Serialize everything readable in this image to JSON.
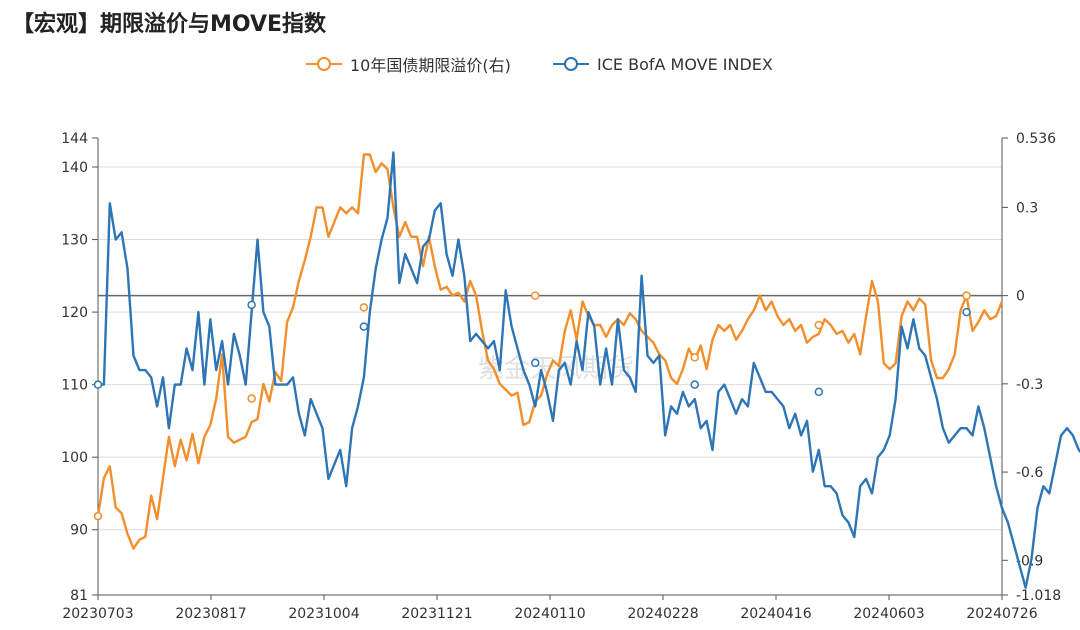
{
  "title": "【宏观】期限溢价与MOVE指数",
  "watermark": "紫金天风期货",
  "legend": [
    {
      "label": "10年国债期限溢价(右)",
      "color": "#F28E2B"
    },
    {
      "label": "ICE BofA MOVE INDEX",
      "color": "#2E75B6"
    }
  ],
  "chart_data": {
    "type": "line",
    "x_ticks": [
      "20230703",
      "20230817",
      "20231004",
      "20231121",
      "20240110",
      "20240228",
      "20240416",
      "20240603",
      "20240726"
    ],
    "left_axis": {
      "ticks": [
        81,
        90,
        100,
        110,
        120,
        130,
        140,
        144
      ],
      "range": [
        81,
        144
      ]
    },
    "right_axis": {
      "ticks": [
        -1.018,
        -0.9,
        -0.6,
        -0.3,
        0,
        0.3,
        0.536
      ],
      "range": [
        -1.018,
        0.536
      ]
    },
    "grid": true,
    "series": [
      {
        "name": "10年国债期限溢价(右)",
        "axis": "right",
        "color": "#F28E2B",
        "values": [
          -0.75,
          -0.62,
          -0.58,
          -0.72,
          -0.74,
          -0.81,
          -0.86,
          -0.83,
          -0.82,
          -0.68,
          -0.76,
          -0.62,
          -0.48,
          -0.58,
          -0.49,
          -0.56,
          -0.47,
          -0.57,
          -0.48,
          -0.44,
          -0.35,
          -0.2,
          -0.48,
          -0.5,
          -0.49,
          -0.48,
          -0.43,
          -0.42,
          -0.3,
          -0.36,
          -0.26,
          -0.29,
          -0.09,
          -0.04,
          0.05,
          0.12,
          0.2,
          0.3,
          0.3,
          0.2,
          0.25,
          0.3,
          0.28,
          0.3,
          0.28,
          0.48,
          0.48,
          0.42,
          0.45,
          0.43,
          0.3,
          0.2,
          0.25,
          0.2,
          0.2,
          0.1,
          0.2,
          0.1,
          0.02,
          0.03,
          0.0,
          0.01,
          -0.02,
          0.05,
          0.0,
          -0.12,
          -0.22,
          -0.25,
          -0.3,
          -0.32,
          -0.34,
          -0.33,
          -0.44,
          -0.43,
          -0.36,
          -0.34,
          -0.27,
          -0.22,
          -0.24,
          -0.12,
          -0.05,
          -0.15,
          -0.02,
          -0.07,
          -0.1,
          -0.1,
          -0.14,
          -0.1,
          -0.08,
          -0.1,
          -0.06,
          -0.08,
          -0.12,
          -0.14,
          -0.16,
          -0.2,
          -0.22,
          -0.28,
          -0.3,
          -0.25,
          -0.18,
          -0.22,
          -0.17,
          -0.25,
          -0.15,
          -0.1,
          -0.12,
          -0.1,
          -0.15,
          -0.12,
          -0.08,
          -0.05,
          0.0,
          -0.05,
          -0.02,
          -0.07,
          -0.1,
          -0.08,
          -0.12,
          -0.1,
          -0.16,
          -0.14,
          -0.13,
          -0.08,
          -0.1,
          -0.13,
          -0.12,
          -0.16,
          -0.13,
          -0.2,
          -0.07,
          0.05,
          -0.02,
          -0.23,
          -0.25,
          -0.23,
          -0.07,
          -0.02,
          -0.05,
          -0.01,
          -0.03,
          -0.22,
          -0.28,
          -0.28,
          -0.25,
          -0.2,
          -0.05,
          0.0,
          -0.12,
          -0.09,
          -0.05,
          -0.08,
          -0.07,
          -0.02
        ]
      },
      {
        "name": "ICE BofA MOVE INDEX",
        "axis": "left",
        "color": "#2E75B6",
        "values": [
          110,
          110,
          135,
          130,
          131,
          126,
          114,
          112,
          112,
          111,
          107,
          111,
          104,
          110,
          110,
          115,
          112,
          120,
          110,
          119,
          112,
          116,
          110,
          117,
          114,
          110,
          120,
          130,
          120,
          118,
          110,
          110,
          110,
          111,
          106,
          103,
          108,
          106,
          104,
          97,
          99,
          101,
          96,
          104,
          107,
          111,
          120,
          126,
          130,
          133,
          142,
          124,
          128,
          126,
          124,
          129,
          130,
          134,
          135,
          128,
          125,
          130,
          125,
          116,
          117,
          116,
          115,
          116,
          112,
          123,
          118,
          115,
          112,
          110,
          107,
          112,
          109,
          105,
          112,
          113,
          110,
          116,
          112,
          120,
          118,
          110,
          115,
          110,
          119,
          112,
          111,
          109,
          125,
          114,
          113,
          114,
          103,
          107,
          106,
          109,
          107,
          108,
          104,
          105,
          101,
          109,
          110,
          108,
          106,
          108,
          107,
          113,
          111,
          109,
          109,
          108,
          107,
          104,
          106,
          103,
          105,
          98,
          101,
          96,
          96,
          95,
          92,
          91,
          89,
          96,
          97,
          95,
          100,
          101,
          103,
          108,
          118,
          115,
          119,
          115,
          114,
          111,
          108,
          104,
          102,
          103,
          104,
          104,
          103,
          107,
          104,
          100,
          96,
          93,
          91,
          88,
          85,
          82,
          86,
          93,
          96,
          95,
          99,
          103,
          104,
          103,
          101,
          100,
          99,
          98,
          99,
          100,
          102,
          105,
          107,
          101,
          95,
          93,
          91,
          94,
          93,
          95,
          95,
          96,
          99
        ]
      }
    ],
    "markers": {
      "left": [
        [
          0,
          110
        ],
        [
          26,
          121
        ],
        [
          45,
          118
        ],
        [
          74,
          113
        ],
        [
          101,
          110
        ],
        [
          122,
          109
        ],
        [
          147,
          120
        ],
        [
          168,
          94
        ],
        [
          200,
          94
        ],
        [
          211,
          99
        ]
      ],
      "right": [
        [
          0,
          -0.75
        ],
        [
          26,
          -0.35
        ],
        [
          45,
          -0.04
        ],
        [
          74,
          0.0
        ],
        [
          101,
          -0.21
        ],
        [
          122,
          -0.1
        ],
        [
          147,
          0.0
        ],
        [
          168,
          -0.18
        ],
        [
          200,
          -0.07
        ],
        [
          211,
          -0.02
        ]
      ]
    }
  }
}
